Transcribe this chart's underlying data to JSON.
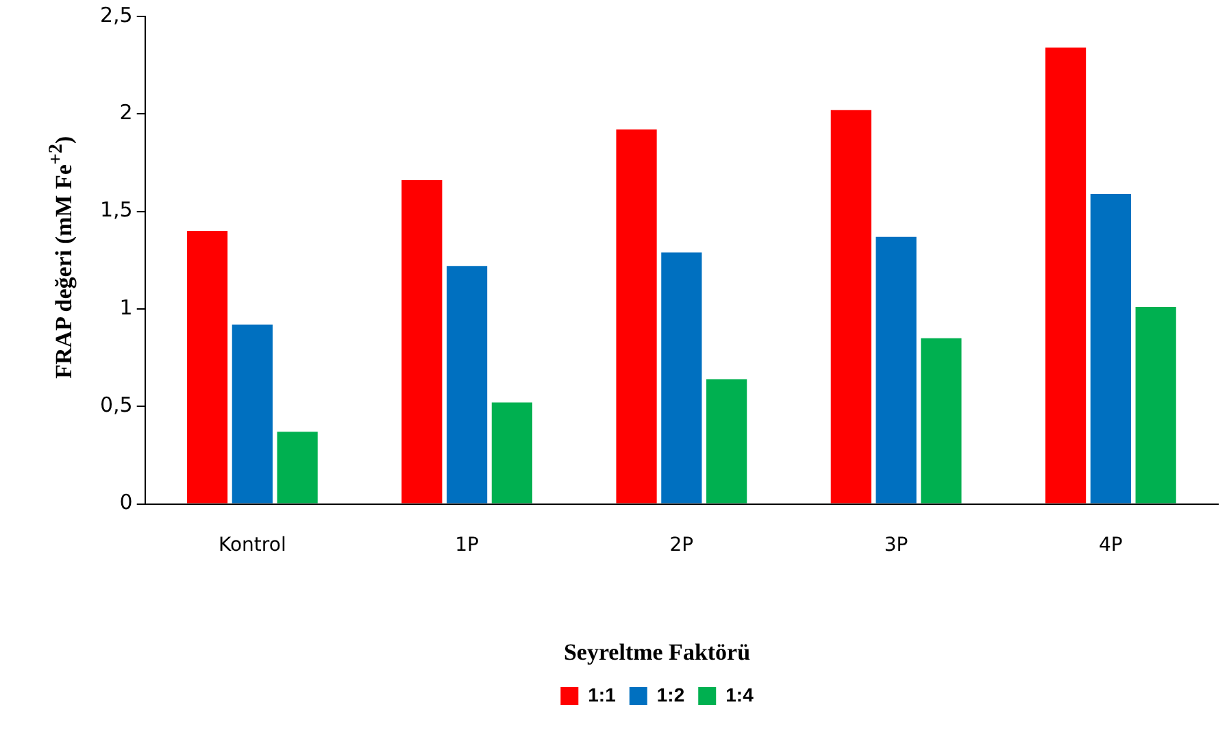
{
  "chart_data": {
    "type": "bar",
    "ylabel": "FRAP değeri (mM Fe$^{+2}$)",
    "legend_title": "Seyreltme Faktörü",
    "categories": [
      "Kontrol",
      "1P",
      "2P",
      "3P",
      "4P"
    ],
    "series": [
      {
        "name": "1:1",
        "color": "#ff0000",
        "values": [
          1.4,
          1.66,
          1.92,
          2.02,
          2.34
        ]
      },
      {
        "name": "1:2",
        "color": "#0070c0",
        "values": [
          0.92,
          1.22,
          1.29,
          1.37,
          1.59
        ]
      },
      {
        "name": "1:4",
        "color": "#00b050",
        "values": [
          0.37,
          0.52,
          0.64,
          0.85,
          1.01
        ]
      }
    ],
    "ylim": [
      0,
      2.5
    ],
    "yticks": [
      0,
      {
        "value": 0.5,
        "label": "0,5"
      },
      1,
      {
        "value": 1.5,
        "label": "1,5"
      },
      2,
      {
        "value": 2.5,
        "label": "2,5"
      }
    ],
    "grid": false,
    "legend": "bottom"
  }
}
